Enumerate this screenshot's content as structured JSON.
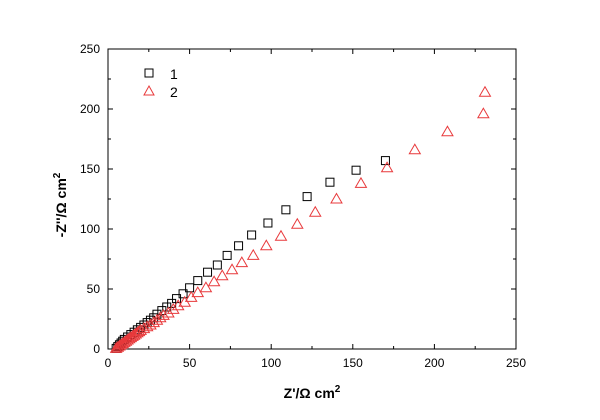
{
  "chart_data": {
    "type": "scatter",
    "xlabel_main": "Z'/Ω cm",
    "xlabel_sup": "2",
    "ylabel_main": "-Z''/Ω cm",
    "ylabel_sup": "2",
    "xlim": [
      0,
      250
    ],
    "ylim": [
      0,
      250
    ],
    "xticks": [
      0,
      50,
      100,
      150,
      200,
      250
    ],
    "yticks": [
      0,
      50,
      100,
      150,
      200,
      250
    ],
    "grid": false,
    "legend_position": "top-left",
    "series": [
      {
        "name": "1",
        "marker": "square",
        "color": "#000000",
        "points": [
          [
            5,
            0.5
          ],
          [
            6,
            2
          ],
          [
            7,
            3.5
          ],
          [
            8,
            5
          ],
          [
            9,
            6.5
          ],
          [
            10,
            8
          ],
          [
            12,
            10
          ],
          [
            14,
            12
          ],
          [
            16,
            14
          ],
          [
            18,
            16
          ],
          [
            20,
            18
          ],
          [
            22,
            20
          ],
          [
            24,
            22
          ],
          [
            26,
            24
          ],
          [
            28,
            26
          ],
          [
            30,
            29
          ],
          [
            33,
            32
          ],
          [
            36,
            35
          ],
          [
            39,
            38
          ],
          [
            42,
            42
          ],
          [
            46,
            46
          ],
          [
            50,
            51
          ],
          [
            55,
            57
          ],
          [
            61,
            64
          ],
          [
            67,
            70
          ],
          [
            73,
            78
          ],
          [
            80,
            86
          ],
          [
            88,
            95
          ],
          [
            98,
            105
          ],
          [
            109,
            116
          ],
          [
            122,
            127
          ],
          [
            136,
            139
          ],
          [
            152,
            149
          ],
          [
            170,
            157
          ]
        ]
      },
      {
        "name": "2",
        "marker": "triangle",
        "color": "#e8393b",
        "points": [
          [
            5,
            0.5
          ],
          [
            6,
            1.5
          ],
          [
            7,
            2.5
          ],
          [
            8,
            3.5
          ],
          [
            9,
            4.5
          ],
          [
            10,
            5.5
          ],
          [
            11,
            6.5
          ],
          [
            12,
            7.5
          ],
          [
            13,
            8.5
          ],
          [
            14,
            9.5
          ],
          [
            15,
            10.5
          ],
          [
            16,
            11.5
          ],
          [
            17,
            12.5
          ],
          [
            18,
            13.5
          ],
          [
            19,
            14.5
          ],
          [
            20,
            15.5
          ],
          [
            22,
            17
          ],
          [
            24,
            18.5
          ],
          [
            26,
            20
          ],
          [
            28,
            22
          ],
          [
            30,
            24
          ],
          [
            32,
            26
          ],
          [
            34,
            28
          ],
          [
            37,
            30
          ],
          [
            40,
            33
          ],
          [
            43,
            36
          ],
          [
            47,
            39
          ],
          [
            51,
            43
          ],
          [
            55,
            47
          ],
          [
            60,
            51
          ],
          [
            65,
            56
          ],
          [
            70,
            61
          ],
          [
            76,
            66
          ],
          [
            82,
            72
          ],
          [
            89,
            78
          ],
          [
            97,
            86
          ],
          [
            106,
            94
          ],
          [
            116,
            104
          ],
          [
            127,
            114
          ],
          [
            140,
            125
          ],
          [
            155,
            138
          ],
          [
            171,
            151
          ],
          [
            188,
            166
          ],
          [
            208,
            181
          ],
          [
            230,
            196
          ],
          [
            231,
            214
          ]
        ]
      }
    ]
  }
}
